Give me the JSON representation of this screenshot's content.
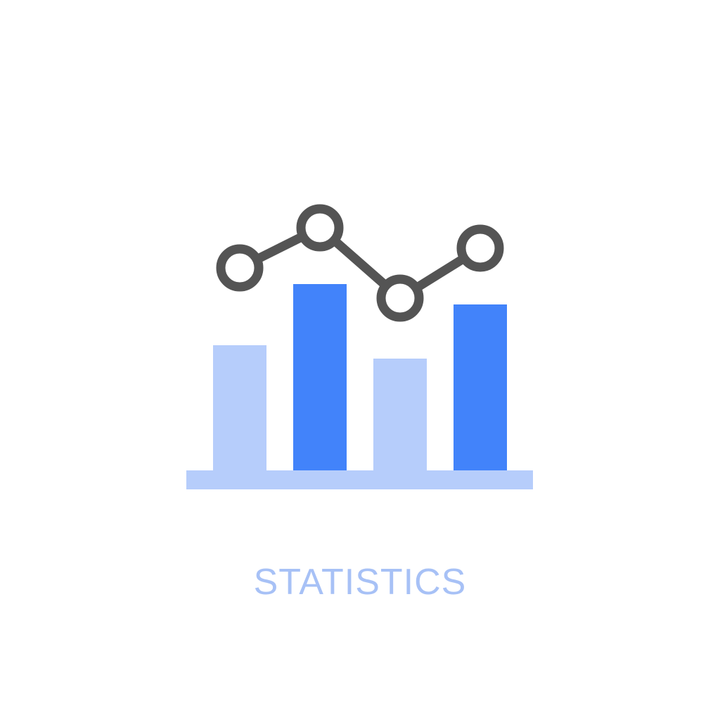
{
  "caption": "STATISTICS",
  "icon": {
    "name": "statistics-chart-icon",
    "bar_levels": [
      0.67,
      1.0,
      0.6,
      0.89
    ],
    "line_levels": [
      0.8,
      1.0,
      0.65,
      0.9
    ]
  },
  "colors": {
    "background": "#ffffff",
    "light_blue": "#b6cdfb",
    "dark_blue": "#4283fa",
    "line": "#545454",
    "node_fill": "#ffffff",
    "caption": "#a7c1f6"
  }
}
